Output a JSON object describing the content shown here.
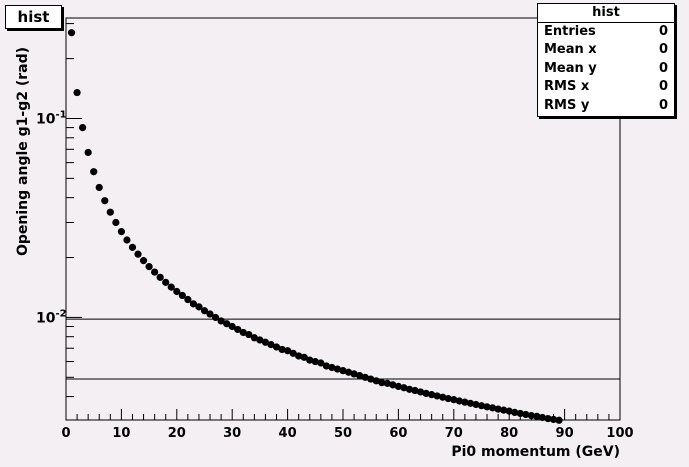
{
  "title": "hist",
  "stats": {
    "title": "hist",
    "rows": [
      {
        "label": "Entries",
        "value": "0"
      },
      {
        "label": "Mean x",
        "value": "0"
      },
      {
        "label": "Mean y",
        "value": "0"
      },
      {
        "label": "RMS x",
        "value": "0"
      },
      {
        "label": "RMS y",
        "value": "0"
      }
    ]
  },
  "colors": {
    "background": "#f3eff2",
    "frame": "#000000",
    "marker": "#000000"
  },
  "chart_data": {
    "type": "scatter",
    "title": "hist",
    "xlabel": "Pi0 momentum (GeV)",
    "ylabel": "Opening angle g1-g2 (rad)",
    "xlim": [
      0,
      100
    ],
    "ylim": [
      0.00305,
      0.32
    ],
    "yscale": "log",
    "grid": false,
    "x_ticks": [
      0,
      10,
      20,
      30,
      40,
      50,
      60,
      70,
      80,
      90,
      100
    ],
    "y_tick_labels": [
      {
        "base": "10",
        "exp": "-2",
        "value": 0.01
      },
      {
        "base": "10",
        "exp": "-1",
        "value": 0.1
      }
    ],
    "reference_lines_y": [
      0.0098,
      0.0049
    ],
    "series": [
      {
        "x": [
          1,
          2,
          3,
          4,
          5,
          6,
          7,
          8,
          9,
          10,
          11,
          12,
          13,
          14,
          15,
          16,
          17,
          18,
          19,
          20,
          21,
          22,
          23,
          24,
          25,
          26,
          27,
          28,
          29,
          30,
          31,
          32,
          33,
          34,
          35,
          36,
          37,
          38,
          39,
          40,
          41,
          42,
          43,
          44,
          45,
          46,
          47,
          48,
          49,
          50,
          51,
          52,
          53,
          54,
          55,
          56,
          57,
          58,
          59,
          60,
          61,
          62,
          63,
          64,
          65,
          66,
          67,
          68,
          69,
          70,
          71,
          72,
          73,
          74,
          75,
          76,
          77,
          78,
          79,
          80,
          81,
          82,
          83,
          84,
          85,
          86,
          87,
          88,
          89
        ],
        "y": [
          0.27,
          0.135,
          0.09,
          0.0675,
          0.054,
          0.045,
          0.0386,
          0.0338,
          0.03,
          0.027,
          0.0245,
          0.0225,
          0.0208,
          0.0193,
          0.018,
          0.0169,
          0.0159,
          0.015,
          0.0142,
          0.0135,
          0.0129,
          0.0123,
          0.0117,
          0.0113,
          0.0108,
          0.0104,
          0.01,
          0.0096,
          0.0093,
          0.009,
          0.0087,
          0.0084,
          0.0082,
          0.0079,
          0.0077,
          0.0075,
          0.0073,
          0.0071,
          0.0069,
          0.0068,
          0.0066,
          0.0064,
          0.0063,
          0.0061,
          0.006,
          0.0059,
          0.0057,
          0.0056,
          0.0055,
          0.0054,
          0.0053,
          0.0052,
          0.0051,
          0.005,
          0.0049,
          0.0048,
          0.0047,
          0.00466,
          0.00458,
          0.0045,
          0.00443,
          0.00435,
          0.00429,
          0.00422,
          0.00415,
          0.00409,
          0.00403,
          0.00397,
          0.00391,
          0.00386,
          0.0038,
          0.00375,
          0.0037,
          0.00365,
          0.0036,
          0.00355,
          0.00351,
          0.00346,
          0.00342,
          0.00338,
          0.00333,
          0.00329,
          0.00325,
          0.00321,
          0.00318,
          0.00314,
          0.0031,
          0.00307,
          0.00304
        ]
      }
    ]
  }
}
